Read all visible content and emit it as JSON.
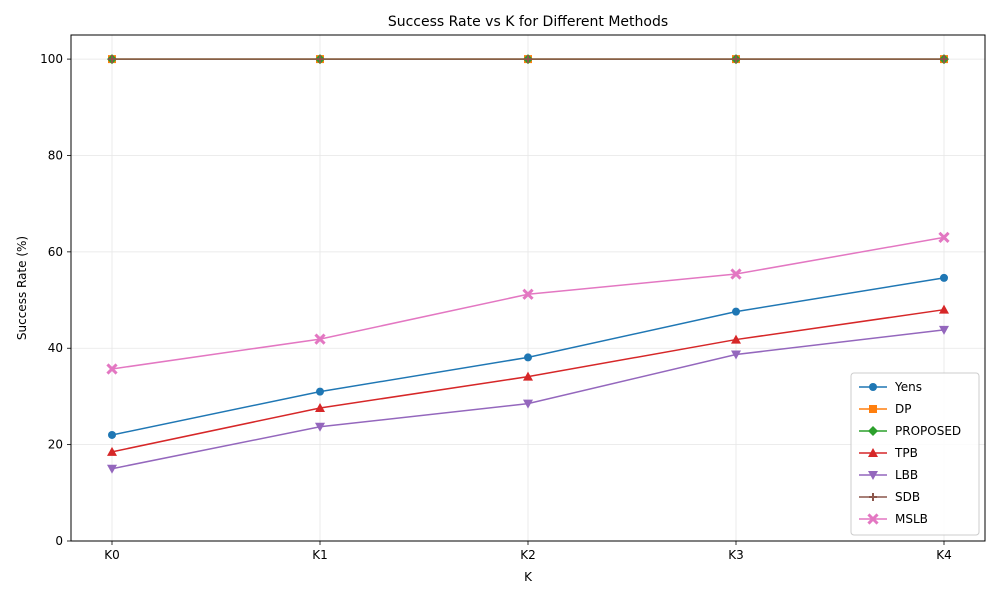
{
  "chart_data": {
    "type": "line",
    "title": "Success Rate vs K for Different Methods",
    "xlabel": "K",
    "ylabel": "Success Rate (%)",
    "categories": [
      "K0",
      "K1",
      "K2",
      "K3",
      "K4"
    ],
    "ylim": [
      0,
      105
    ],
    "yticks": [
      "0",
      "20",
      "40",
      "60",
      "80",
      "100"
    ],
    "grid": true,
    "legend_position": "lower right",
    "series": [
      {
        "name": "Yens",
        "color": "#1f77b4",
        "marker": "circle",
        "values": [
          22.0,
          31.0,
          38.1,
          47.6,
          54.6
        ]
      },
      {
        "name": "DP",
        "color": "#ff7f0e",
        "marker": "square",
        "values": [
          100,
          100,
          100,
          100,
          100
        ]
      },
      {
        "name": "PROPOSED",
        "color": "#2ca02c",
        "marker": "diamond",
        "values": [
          100,
          100,
          100,
          100,
          100
        ]
      },
      {
        "name": "TPB",
        "color": "#d62728",
        "marker": "triangle-up",
        "values": [
          18.5,
          27.6,
          34.1,
          41.8,
          48.0
        ]
      },
      {
        "name": "LBB",
        "color": "#9467bd",
        "marker": "triangle-down",
        "values": [
          15.0,
          23.7,
          28.5,
          38.7,
          43.8
        ]
      },
      {
        "name": "SDB",
        "color": "#8c564b",
        "marker": "plus",
        "values": [
          100,
          100,
          100,
          100,
          100
        ]
      },
      {
        "name": "MSLB",
        "color": "#e377c2",
        "marker": "x",
        "values": [
          35.7,
          41.9,
          51.2,
          55.4,
          63.0
        ]
      }
    ]
  }
}
